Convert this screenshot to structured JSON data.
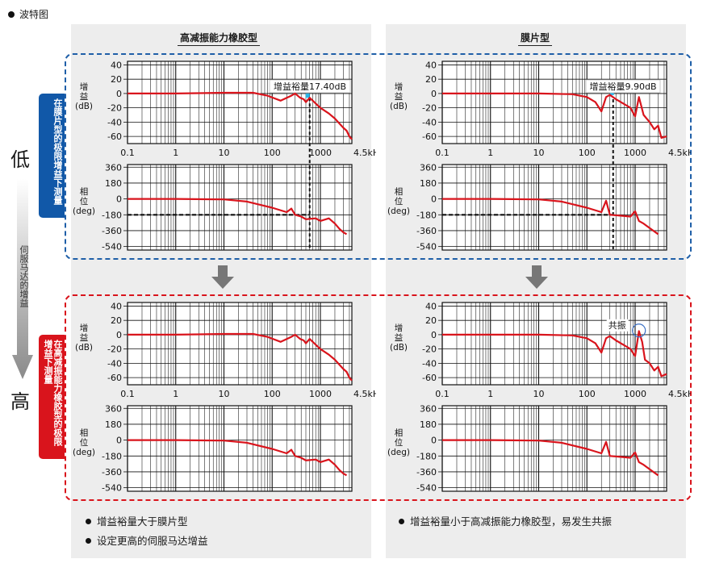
{
  "header": {
    "title": "波特图"
  },
  "columns": [
    {
      "title": "高减振能力橡胶型",
      "bullets": [
        "增益裕量大于膜片型",
        "设定更高的伺服马达增益"
      ]
    },
    {
      "title": "膜片型",
      "bullets": [
        "增益裕量小于高减振能力橡胶型，易发生共振"
      ]
    }
  ],
  "rows": [
    {
      "label": "在膜片型的极限增益下测量",
      "color": "#1158a8"
    },
    {
      "label": "在高减振能力橡胶型的极限增益下测量",
      "color": "#d9141c"
    }
  ],
  "axis": {
    "low": "低",
    "high": "高",
    "servo_gain": "伺服马达的增益"
  },
  "colors": {
    "curve": "#d9141c",
    "blue": "#1f5fa8",
    "red": "#d9141c",
    "cyan": "#29b6e8",
    "panel": "#ededed"
  },
  "chart_data": [
    {
      "type": "line",
      "id": "rubber-low",
      "title": "",
      "xlabel": "4.5kHz",
      "x_scale": "log",
      "x_ticks": [
        "0.1",
        "1",
        "10",
        "100",
        "1000"
      ],
      "gain": {
        "ylabel": "增益(dB)",
        "ylim": [
          -70,
          45
        ],
        "yticks": [
          40,
          20,
          0,
          -20,
          -40,
          -60
        ],
        "x": [
          0.1,
          1,
          10,
          40,
          80,
          150,
          250,
          300,
          380,
          450,
          500,
          600,
          800,
          1000,
          1500,
          2000,
          2500,
          3000,
          3500,
          4000,
          4500
        ],
        "y": [
          0,
          0,
          1,
          1,
          -3,
          -10,
          -3,
          0,
          -6,
          -8,
          -12,
          -6,
          -14,
          -20,
          -28,
          -35,
          -42,
          -48,
          -52,
          -60,
          -64
        ]
      },
      "phase": {
        "ylabel": "相位(deg)",
        "ylim": [
          -580,
          390
        ],
        "yticks": [
          360,
          180,
          0,
          -180,
          -360,
          -540
        ],
        "x": [
          0.1,
          1,
          10,
          30,
          100,
          200,
          250,
          300,
          400,
          500,
          800,
          1000,
          1500,
          2000,
          2500,
          3000,
          3500
        ],
        "y": [
          0,
          0,
          -5,
          -30,
          -100,
          -150,
          -110,
          -180,
          -200,
          -230,
          -220,
          -250,
          -220,
          -280,
          -340,
          -380,
          -400
        ]
      },
      "annotation": "增益裕量17.40dB",
      "margin_freq": 600
    },
    {
      "type": "line",
      "id": "diaphragm-low",
      "title": "",
      "xlabel": "4.5kHz",
      "x_scale": "log",
      "x_ticks": [
        "0.1",
        "1",
        "10",
        "100",
        "1000"
      ],
      "gain": {
        "ylabel": "增益(dB)",
        "ylim": [
          -70,
          45
        ],
        "yticks": [
          40,
          20,
          0,
          -20,
          -40,
          -60
        ],
        "x": [
          0.1,
          1,
          10,
          50,
          100,
          150,
          200,
          250,
          300,
          400,
          600,
          800,
          1000,
          1200,
          1500,
          2000,
          2500,
          3000,
          3500,
          4500
        ],
        "y": [
          0,
          0,
          0,
          -1,
          -5,
          -12,
          -25,
          -5,
          -2,
          -8,
          -15,
          -20,
          -32,
          -5,
          -30,
          -40,
          -50,
          -45,
          -62,
          -60
        ]
      },
      "phase": {
        "ylabel": "相位(deg)",
        "ylim": [
          -580,
          390
        ],
        "yticks": [
          360,
          180,
          0,
          -180,
          -360,
          -540
        ],
        "x": [
          0.1,
          1,
          10,
          30,
          100,
          200,
          250,
          300,
          500,
          800,
          1000,
          1200,
          1500,
          2000,
          3000
        ],
        "y": [
          0,
          0,
          -5,
          -30,
          -100,
          -150,
          -20,
          -180,
          -190,
          -200,
          -140,
          -250,
          -280,
          -330,
          -400
        ]
      },
      "annotation": "增益裕量9.90dB",
      "margin_freq": 350
    },
    {
      "type": "line",
      "id": "rubber-high",
      "title": "",
      "xlabel": "4.5kHz",
      "x_scale": "log",
      "x_ticks": [
        "0.1",
        "1",
        "10",
        "100",
        "1000"
      ],
      "gain": {
        "ylabel": "增益(dB)",
        "ylim": [
          -70,
          45
        ],
        "yticks": [
          40,
          20,
          0,
          -20,
          -40,
          -60
        ],
        "x": [
          0.1,
          1,
          10,
          40,
          80,
          150,
          250,
          300,
          380,
          450,
          500,
          600,
          800,
          1000,
          1500,
          2000,
          2500,
          3000,
          3500,
          4000,
          4500
        ],
        "y": [
          0,
          0,
          1,
          1,
          -3,
          -10,
          -3,
          0,
          -6,
          -8,
          -12,
          -6,
          -14,
          -20,
          -28,
          -35,
          -42,
          -48,
          -52,
          -60,
          -64
        ]
      },
      "phase": {
        "ylabel": "相位(deg)",
        "ylim": [
          -580,
          390
        ],
        "yticks": [
          360,
          180,
          0,
          -180,
          -360,
          -540
        ],
        "x": [
          0.1,
          1,
          10,
          30,
          100,
          200,
          250,
          300,
          400,
          500,
          800,
          1000,
          1500,
          2000,
          2500,
          3000,
          3500
        ],
        "y": [
          0,
          0,
          -5,
          -30,
          -100,
          -150,
          -110,
          -180,
          -200,
          -230,
          -220,
          -250,
          -220,
          -280,
          -340,
          -380,
          -400
        ]
      },
      "annotation": ""
    },
    {
      "type": "line",
      "id": "diaphragm-high",
      "title": "",
      "xlabel": "4.5kHz",
      "x_scale": "log",
      "x_ticks": [
        "0.1",
        "1",
        "10",
        "100",
        "1000"
      ],
      "gain": {
        "ylabel": "增益(dB)",
        "ylim": [
          -70,
          45
        ],
        "yticks": [
          40,
          20,
          0,
          -20,
          -40,
          -60
        ],
        "x": [
          0.1,
          1,
          10,
          50,
          100,
          150,
          200,
          250,
          300,
          400,
          600,
          800,
          1000,
          1200,
          1400,
          1600,
          2000,
          2500,
          3000,
          3500,
          4500
        ],
        "y": [
          0,
          0,
          0,
          -1,
          -5,
          -12,
          -25,
          -5,
          -2,
          -8,
          -15,
          -20,
          -30,
          5,
          -10,
          -35,
          -40,
          -50,
          -45,
          -58,
          -55
        ]
      },
      "phase": {
        "ylabel": "相位(deg)",
        "ylim": [
          -580,
          390
        ],
        "yticks": [
          360,
          180,
          0,
          -180,
          -360,
          -540
        ],
        "x": [
          0.1,
          1,
          10,
          30,
          100,
          200,
          250,
          300,
          500,
          800,
          1000,
          1200,
          1500,
          2000,
          3000
        ],
        "y": [
          0,
          0,
          -5,
          -30,
          -100,
          -150,
          -20,
          -180,
          -190,
          -200,
          -140,
          -250,
          -280,
          -330,
          -400
        ]
      },
      "annotation": "共振"
    }
  ]
}
